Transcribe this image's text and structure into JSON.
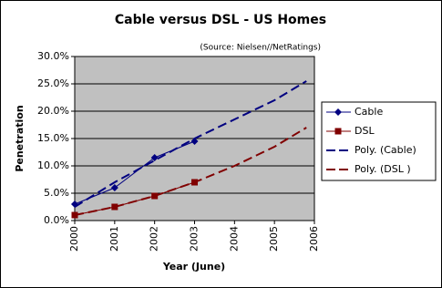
{
  "chart_data": {
    "type": "line",
    "title": "Cable versus DSL - US Homes",
    "subtitle": "(Source: Nielsen//NetRatings)",
    "x_label": "Year (June)",
    "y_label": "Penetration",
    "xlim": [
      2000,
      2006
    ],
    "xticks": [
      2000,
      2001,
      2002,
      2003,
      2004,
      2005,
      2006
    ],
    "ylim": [
      0,
      30
    ],
    "yticks": [
      {
        "value": 0,
        "label": "0.0%"
      },
      {
        "value": 5,
        "label": "5.0%"
      },
      {
        "value": 10,
        "label": "10.0%"
      },
      {
        "value": 15,
        "label": "15.0%"
      },
      {
        "value": 20,
        "label": "20.0%"
      },
      {
        "value": 25,
        "label": "25.0%"
      },
      {
        "value": 30,
        "label": "30.0%"
      }
    ],
    "grid": true,
    "legend": "right",
    "series": [
      {
        "name": "Cable",
        "color": "#000080",
        "marker": "diamond",
        "dashed": false,
        "x": [
          2000,
          2001,
          2002,
          2003
        ],
        "values": [
          3.0,
          6.0,
          11.5,
          14.5
        ]
      },
      {
        "name": "DSL",
        "color": "#800000",
        "marker": "square",
        "dashed": false,
        "x": [
          2000,
          2001,
          2002,
          2003
        ],
        "values": [
          1.0,
          2.5,
          4.5,
          7.0
        ]
      },
      {
        "name": "Poly. (Cable)",
        "color": "#000080",
        "marker": null,
        "dashed": true,
        "x": [
          2000,
          2001,
          2002,
          2003,
          2004,
          2005,
          2005.8
        ],
        "values": [
          2.5,
          7.0,
          11.0,
          15.0,
          18.5,
          22.0,
          25.5
        ]
      },
      {
        "name": "Poly. (DSL )",
        "color": "#800000",
        "marker": null,
        "dashed": true,
        "x": [
          2000,
          2001,
          2002,
          2003,
          2004,
          2005,
          2005.8
        ],
        "values": [
          1.0,
          2.5,
          4.5,
          7.0,
          10.0,
          13.5,
          17.0
        ]
      }
    ]
  }
}
